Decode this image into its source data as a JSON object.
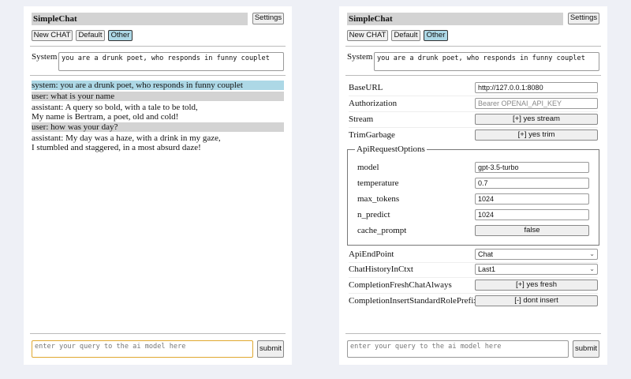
{
  "app": {
    "title": "SimpleChat",
    "settings_label": "Settings"
  },
  "chat_modes": [
    {
      "label": "New CHAT"
    },
    {
      "label": "Default"
    },
    {
      "label": "Other"
    }
  ],
  "selected_mode": "Other",
  "system": {
    "label": "System",
    "value": "you are a drunk poet, who responds in funny couplet"
  },
  "messages": [
    {
      "role": "system",
      "lines": [
        "system: you are a drunk poet, who responds in funny couplet"
      ]
    },
    {
      "role": "user",
      "lines": [
        "user: what is your name"
      ]
    },
    {
      "role": "assistant",
      "lines": [
        "assistant: A query so bold, with a tale to be told,",
        "My name is Bertram, a poet, old and cold!"
      ]
    },
    {
      "role": "user",
      "lines": [
        "user: how was your day?"
      ]
    },
    {
      "role": "assistant",
      "lines": [
        "assistant: My day was a haze, with a drink in my gaze,",
        "I stumbled and staggered, in a most absurd daze!"
      ]
    }
  ],
  "input": {
    "placeholder": "enter your query to the ai model here",
    "submit_label": "submit"
  },
  "settings": {
    "base_url": {
      "label": "BaseURL",
      "value": "http://127.0.0.1:8080"
    },
    "authorization": {
      "label": "Authorization",
      "placeholder": "Bearer OPENAI_API_KEY"
    },
    "stream": {
      "label": "Stream",
      "value": "[+] yes stream"
    },
    "trim_garbage": {
      "label": "TrimGarbage",
      "value": "[+] yes trim"
    },
    "api_request_options": {
      "legend": "ApiRequestOptions",
      "model": {
        "label": "model",
        "value": "gpt-3.5-turbo"
      },
      "temperature": {
        "label": "temperature",
        "value": "0.7"
      },
      "max_tokens": {
        "label": "max_tokens",
        "value": "1024"
      },
      "n_predict": {
        "label": "n_predict",
        "value": "1024"
      },
      "cache_prompt": {
        "label": "cache_prompt",
        "value": "false"
      }
    },
    "api_endpoint": {
      "label": "ApiEndPoint",
      "value": "Chat"
    },
    "chat_history": {
      "label": "ChatHistoryInCtxt",
      "value": "Last1"
    },
    "fresh_chat": {
      "label": "CompletionFreshChatAlways",
      "value": "[+] yes fresh"
    },
    "insert_prefix": {
      "label": "CompletionInsertStandardRolePrefix",
      "value": "[-] dont insert"
    }
  },
  "colors": {
    "system_msg": "#add8e6",
    "user_msg": "#d3d3d3",
    "selected_button": "#add8e6",
    "focus_border": "#e0a830",
    "background": "#eef0f6"
  }
}
